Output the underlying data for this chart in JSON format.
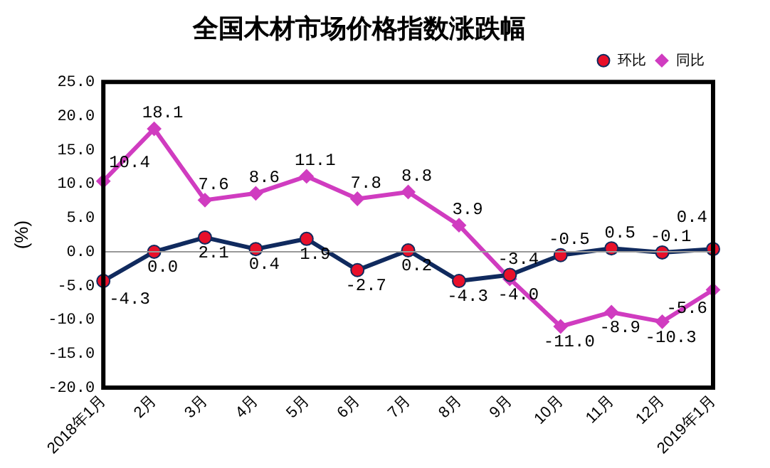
{
  "chart_data": {
    "type": "line",
    "title": "全国木材市场价格指数涨跌幅",
    "ylabel": "(%)",
    "categories": [
      "2018年1月",
      "2月",
      "3月",
      "4月",
      "5月",
      "6月",
      "7月",
      "8月",
      "9月",
      "10月",
      "11月",
      "12月",
      "2019年1月"
    ],
    "series": [
      {
        "name": "环比",
        "color": "#102a5e",
        "marker": "circle",
        "values": [
          -4.3,
          0.0,
          2.1,
          0.4,
          1.9,
          -2.7,
          0.2,
          -4.3,
          -3.4,
          -0.5,
          0.5,
          -0.1,
          0.4
        ],
        "value_labels": [
          "-4.3",
          "0.0",
          "2.1",
          "0.4",
          "1.9",
          "-2.7",
          "0.2",
          "-4.3",
          "-3.4",
          "-0.5",
          "0.5",
          "-0.1",
          "0.4"
        ]
      },
      {
        "name": "同比",
        "color": "#d03cc0",
        "marker": "diamond",
        "values": [
          10.4,
          18.1,
          7.6,
          8.6,
          11.1,
          7.8,
          8.8,
          3.9,
          -4.0,
          -11.0,
          -8.9,
          -10.3,
          -5.6
        ],
        "value_labels": [
          "10.4",
          "18.1",
          "7.6",
          "8.6",
          "11.1",
          "7.8",
          "8.8",
          "3.9",
          "-4.0",
          "-11.0",
          "-8.9",
          "-10.3",
          "-5.6"
        ]
      }
    ],
    "ylim": [
      -20,
      25
    ],
    "yticks": [
      {
        "value": -20,
        "label": "-20.0"
      },
      {
        "value": -15,
        "label": "-15.0"
      },
      {
        "value": -10,
        "label": "-10.0"
      },
      {
        "value": -5,
        "label": "-5.0"
      },
      {
        "value": 0,
        "label": "0.0"
      },
      {
        "value": 5,
        "label": "5.0"
      },
      {
        "value": 10,
        "label": "10.0"
      },
      {
        "value": 15,
        "label": "15.0"
      },
      {
        "value": 20,
        "label": "20.0"
      },
      {
        "value": 25,
        "label": "25.0"
      }
    ],
    "ref_lines": [
      {
        "axis": "y",
        "value": 0,
        "color": "#999999"
      }
    ],
    "grid": false,
    "legend": "top right"
  }
}
